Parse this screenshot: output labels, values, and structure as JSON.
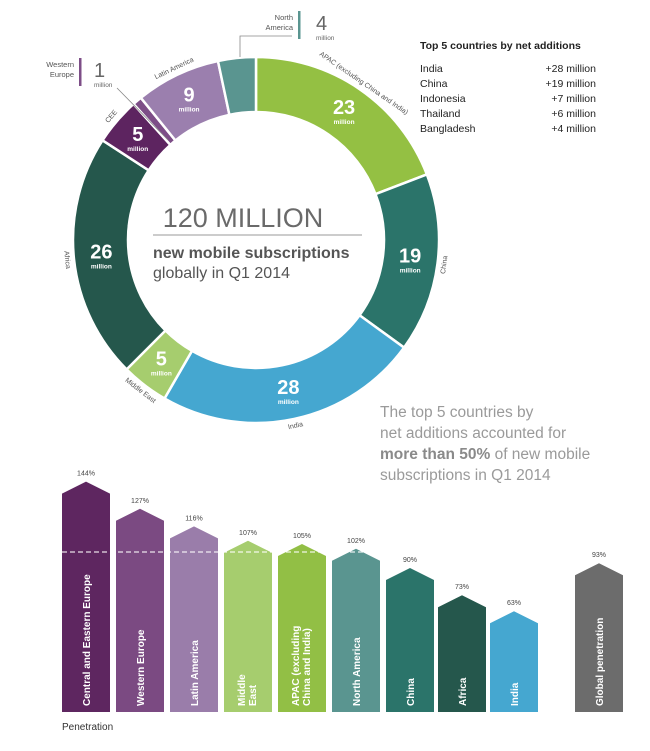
{
  "chart_data": [
    {
      "type": "pie",
      "variant": "donut",
      "units": "million",
      "center_text": {
        "line1": "120 MILLION",
        "line2": "new mobile subscriptions",
        "line3": "globally in Q1 2014"
      },
      "slices": [
        {
          "label": "APAC (excluding China and India)",
          "value": 23,
          "unit": "million",
          "color": "#94c043"
        },
        {
          "label": "China",
          "value": 19,
          "unit": "million",
          "color": "#2b746a"
        },
        {
          "label": "India",
          "value": 28,
          "unit": "million",
          "color": "#45a7d0"
        },
        {
          "label": "Middle East",
          "value": 5,
          "unit": "million",
          "color": "#a6cd6e"
        },
        {
          "label": "Africa",
          "value": 26,
          "unit": "million",
          "color": "#25574c"
        },
        {
          "label": "CEE",
          "value": 5,
          "unit": "million",
          "color": "#5d2460"
        },
        {
          "label": "Western Europe",
          "value": 1,
          "unit": "million",
          "color": "#7d4e87"
        },
        {
          "label": "Latin America",
          "value": 9,
          "unit": "million",
          "color": "#9b7fae"
        },
        {
          "label": "North America",
          "value": 4,
          "unit": "million",
          "color": "#5a9590"
        }
      ]
    },
    {
      "type": "bar",
      "xlabel": "Penetration",
      "categories": [
        "Central and Eastern Europe",
        "Western Europe",
        "Latin America",
        "Middle East",
        "APAC (excluding China and India)",
        "North America",
        "China",
        "Africa",
        "India",
        "Global penetration"
      ],
      "category_lines": [
        [
          "Central and Eastern Europe"
        ],
        [
          "Western Europe"
        ],
        [
          "Latin America"
        ],
        [
          "Middle",
          "East"
        ],
        [
          "APAC (excluding",
          "China and India)"
        ],
        [
          "North America"
        ],
        [
          "China"
        ],
        [
          "Africa"
        ],
        [
          "India"
        ],
        [
          "Global penetration"
        ]
      ],
      "values": [
        144,
        127,
        116,
        107,
        105,
        102,
        90,
        73,
        63,
        93
      ],
      "value_labels": [
        "144%",
        "127%",
        "116%",
        "107%",
        "105%",
        "102%",
        "90%",
        "73%",
        "63%",
        "93%"
      ],
      "colors": [
        "#5e2660",
        "#7b4a82",
        "#9a7daa",
        "#a6cd6e",
        "#92bf45",
        "#5a9590",
        "#2b746a",
        "#25574c",
        "#45a7d0",
        "#6c6c6c"
      ],
      "reference_line": 100
    }
  ],
  "top_countries": {
    "title": "Top 5 countries by net additions",
    "rows": [
      {
        "country": "India",
        "value": "+28 million"
      },
      {
        "country": "China",
        "value": "+19 million"
      },
      {
        "country": "Indonesia",
        "value": "+7 million"
      },
      {
        "country": "Thailand",
        "value": "+6 million"
      },
      {
        "country": "Bangladesh",
        "value": "+4 million"
      }
    ]
  },
  "callout": {
    "line1": "The top 5 countries by",
    "line2": "net additions accounted for",
    "bold": "more than 50%",
    "line3_rest": " of new mobile",
    "line4": "subscriptions in Q1 2014"
  },
  "footer_label": "Penetration"
}
